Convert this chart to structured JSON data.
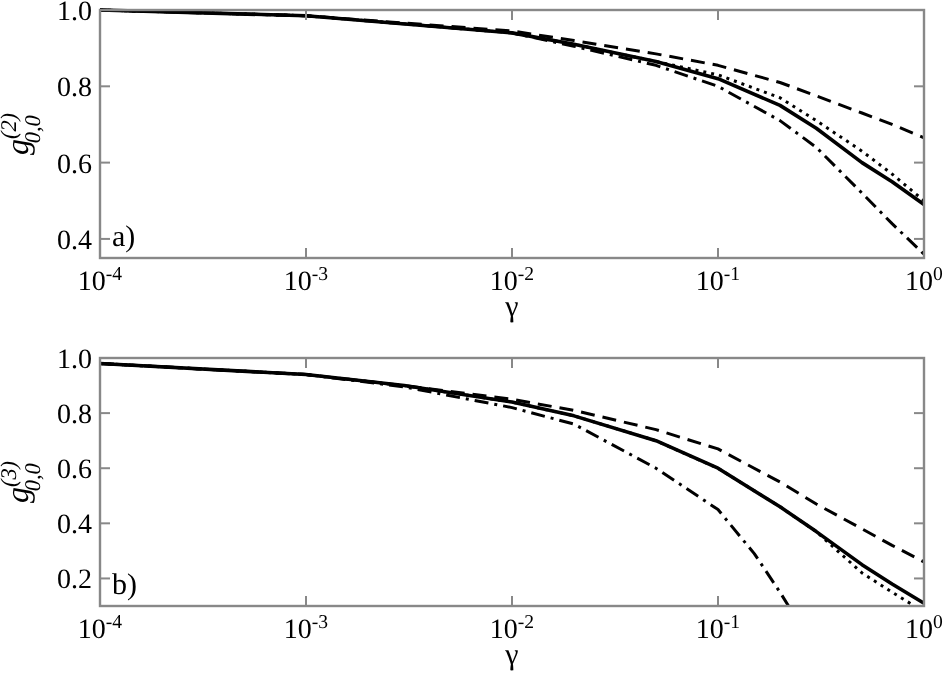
{
  "chart_data": [
    {
      "type": "line",
      "xlabel": "γ",
      "ylabel": "g$^{(2)}$$_{0,0}$",
      "annotations": [
        "a)"
      ],
      "log": "x",
      "xlim": [
        0.0001,
        1
      ],
      "ylim": [
        0.35,
        1.0
      ],
      "xticks": [
        {
          "value": 0.0001,
          "label": "10$^{-4}$"
        },
        {
          "value": 0.001,
          "label": "10$^{-3}$"
        },
        {
          "value": 0.01,
          "label": "10$^{-2}$"
        },
        {
          "value": 0.1,
          "label": "10$^{-1}$"
        },
        {
          "value": 1,
          "label": "10$^{0}$"
        }
      ],
      "yticks": [
        0.4,
        0.6,
        0.8,
        {
          "value": 1,
          "label": "1.0"
        }
      ],
      "grid": false,
      "marker": "none",
      "series": [
        {
          "color": "#000000",
          "line_style": "solid",
          "x": [
            0.0001,
            0.001,
            0.01,
            0.02,
            0.05,
            0.1,
            0.2,
            0.3,
            0.5,
            0.7,
            1
          ],
          "values": [
            1.0,
            0.985,
            0.94,
            0.91,
            0.865,
            0.82,
            0.75,
            0.69,
            0.6,
            0.55,
            0.49
          ]
        },
        {
          "color": "#000000",
          "line_style": "dashed",
          "x": [
            0.0001,
            0.001,
            0.01,
            0.02,
            0.05,
            0.1,
            0.2,
            0.3,
            0.5,
            0.7,
            1
          ],
          "values": [
            1.0,
            0.985,
            0.945,
            0.92,
            0.885,
            0.855,
            0.81,
            0.775,
            0.73,
            0.7,
            0.665
          ]
        },
        {
          "color": "#000000",
          "line_style": "dotted",
          "x": [
            0.0001,
            0.001,
            0.01,
            0.02,
            0.05,
            0.1,
            0.2,
            0.3,
            0.5,
            0.7,
            1
          ],
          "values": [
            1.0,
            0.985,
            0.94,
            0.91,
            0.865,
            0.83,
            0.77,
            0.71,
            0.63,
            0.57,
            0.5
          ]
        },
        {
          "color": "#000000",
          "line_style": "dashdot",
          "x": [
            0.0001,
            0.001,
            0.01,
            0.02,
            0.05,
            0.1,
            0.2,
            0.3,
            0.5,
            0.7,
            1
          ],
          "values": [
            1.0,
            0.985,
            0.94,
            0.905,
            0.855,
            0.8,
            0.71,
            0.64,
            0.52,
            0.44,
            0.36
          ]
        }
      ]
    },
    {
      "type": "line",
      "xlabel": "γ",
      "ylabel": "g$^{(3)}$$_{0,0}$",
      "annotations": [
        "b)"
      ],
      "log": "x",
      "xlim": [
        0.0001,
        1
      ],
      "ylim": [
        0.1,
        1.0
      ],
      "xticks": [
        {
          "value": 0.0001,
          "label": "10$^{-4}$"
        },
        {
          "value": 0.001,
          "label": "10$^{-3}$"
        },
        {
          "value": 0.01,
          "label": "10$^{-2}$"
        },
        {
          "value": 0.1,
          "label": "10$^{-1}$"
        },
        {
          "value": 1,
          "label": "10$^{0}$"
        }
      ],
      "yticks": [
        0.2,
        0.4,
        0.6,
        0.8,
        {
          "value": 1,
          "label": "1.0"
        }
      ],
      "grid": false,
      "marker": "none",
      "series": [
        {
          "color": "#000000",
          "line_style": "solid",
          "x": [
            0.0001,
            0.001,
            0.003,
            0.01,
            0.02,
            0.05,
            0.1,
            0.2,
            0.3,
            0.5,
            0.7,
            1
          ],
          "values": [
            0.98,
            0.94,
            0.9,
            0.84,
            0.79,
            0.7,
            0.6,
            0.46,
            0.37,
            0.25,
            0.18,
            0.11
          ]
        },
        {
          "color": "#000000",
          "line_style": "dashed",
          "x": [
            0.0001,
            0.001,
            0.003,
            0.01,
            0.02,
            0.05,
            0.1,
            0.2,
            0.3,
            0.5,
            0.7,
            1
          ],
          "values": [
            0.98,
            0.94,
            0.9,
            0.85,
            0.81,
            0.74,
            0.67,
            0.55,
            0.47,
            0.38,
            0.32,
            0.26
          ]
        },
        {
          "color": "#000000",
          "line_style": "dotted",
          "x": [
            0.0001,
            0.001,
            0.003,
            0.01,
            0.02,
            0.05,
            0.1,
            0.2,
            0.3,
            0.5,
            0.7,
            0.9
          ],
          "values": [
            0.98,
            0.94,
            0.9,
            0.84,
            0.79,
            0.7,
            0.6,
            0.46,
            0.37,
            0.22,
            0.15,
            0.1
          ]
        },
        {
          "color": "#000000",
          "line_style": "dashdot",
          "x": [
            0.0001,
            0.001,
            0.003,
            0.01,
            0.02,
            0.05,
            0.1,
            0.15,
            0.2,
            0.22
          ],
          "values": [
            0.98,
            0.94,
            0.895,
            0.82,
            0.76,
            0.6,
            0.45,
            0.29,
            0.15,
            0.1
          ]
        }
      ]
    }
  ]
}
